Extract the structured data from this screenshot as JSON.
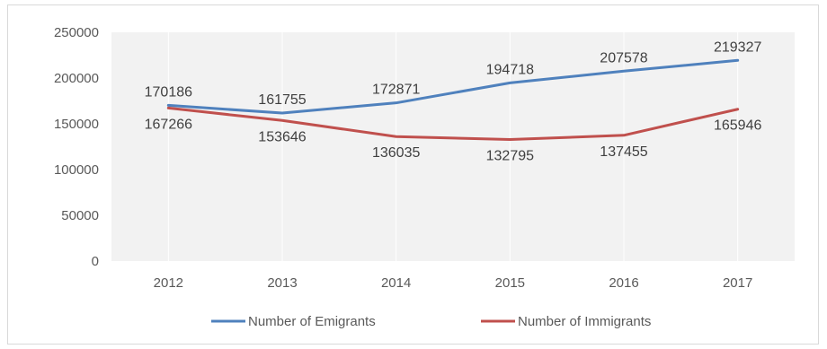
{
  "chart_data": {
    "type": "line",
    "categories": [
      "2012",
      "2013",
      "2014",
      "2015",
      "2016",
      "2017"
    ],
    "series": [
      {
        "name": "Number of Emigrants",
        "values": [
          170186,
          161755,
          172871,
          194718,
          207578,
          219327
        ],
        "color": "#4f81bd"
      },
      {
        "name": "Number of Immigrants",
        "values": [
          167266,
          153646,
          136035,
          132795,
          137455,
          165946
        ],
        "color": "#c0504d"
      }
    ],
    "ylim": [
      0,
      250000
    ],
    "yticks": [
      "0",
      "50000",
      "100000",
      "150000",
      "200000",
      "250000"
    ],
    "data_labels": true,
    "grid": false,
    "legend_position": "bottom"
  }
}
